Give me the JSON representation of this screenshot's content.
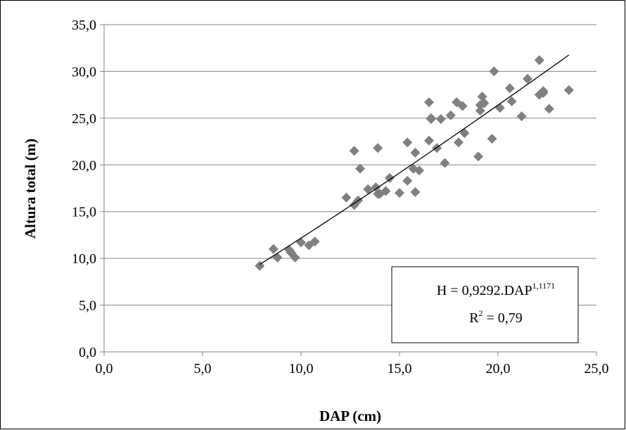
{
  "chart_data": {
    "type": "scatter",
    "xlabel": "DAP (cm)",
    "ylabel": "Altura total (m)",
    "xlim": [
      0,
      25
    ],
    "ylim": [
      0,
      35
    ],
    "x_ticks": [
      0,
      5,
      10,
      15,
      20,
      25
    ],
    "y_ticks": [
      0,
      5,
      10,
      15,
      20,
      25,
      30,
      35
    ],
    "x_tick_labels": [
      "0,0",
      "5,0",
      "10,0",
      "15,0",
      "20,0",
      "25,0"
    ],
    "y_tick_labels": [
      "0,0",
      "5,0",
      "10,0",
      "15,0",
      "20,0",
      "25,0",
      "30,0",
      "35,0"
    ],
    "grid": "horizontal",
    "marker": "diamond",
    "marker_color": "#808080",
    "trendline_color": "#000000",
    "series": [
      {
        "x": [
          7.9,
          8.6,
          8.8,
          9.4,
          9.5,
          9.7,
          10.0,
          10.4,
          10.7,
          12.3,
          12.7,
          12.7,
          12.9,
          13.0,
          13.4,
          13.8,
          13.9,
          13.9,
          14.0,
          14.3,
          14.5,
          15.0,
          15.4,
          15.4,
          15.7,
          15.8,
          15.8,
          16.0,
          16.5,
          16.5,
          16.6,
          16.6,
          16.9,
          17.1,
          17.3,
          17.6,
          17.9,
          18.0,
          18.2,
          18.3,
          19.0,
          19.1,
          19.1,
          19.2,
          19.3,
          19.7,
          19.8,
          20.1,
          20.6,
          20.7,
          21.2,
          21.5,
          22.1,
          22.1,
          22.3,
          22.3,
          22.6,
          23.6
        ],
        "y": [
          9.2,
          11.0,
          10.1,
          10.9,
          10.6,
          10.1,
          11.7,
          11.4,
          11.8,
          16.5,
          21.5,
          15.7,
          16.2,
          19.6,
          17.4,
          17.6,
          16.9,
          21.8,
          16.9,
          17.2,
          18.6,
          17.0,
          18.3,
          22.4,
          19.6,
          21.3,
          17.1,
          19.4,
          26.7,
          22.6,
          24.9,
          25.0,
          21.8,
          24.9,
          20.2,
          25.3,
          26.7,
          22.4,
          26.3,
          23.4,
          20.9,
          26.4,
          25.8,
          27.3,
          26.6,
          22.8,
          30.0,
          26.1,
          28.2,
          26.8,
          25.2,
          29.2,
          27.5,
          31.2,
          27.7,
          27.9,
          26.0,
          28.0
        ]
      }
    ],
    "trendline": {
      "model": "power",
      "a": 0.9292,
      "b": 1.1171,
      "x_range": [
        7.9,
        23.6
      ]
    },
    "annotation": {
      "eq_main": "H = 0,9292.DAP",
      "eq_exp": "1,1171",
      "r2_base": "R",
      "r2_sup": "2",
      "r2_rest": " = 0,79"
    }
  }
}
